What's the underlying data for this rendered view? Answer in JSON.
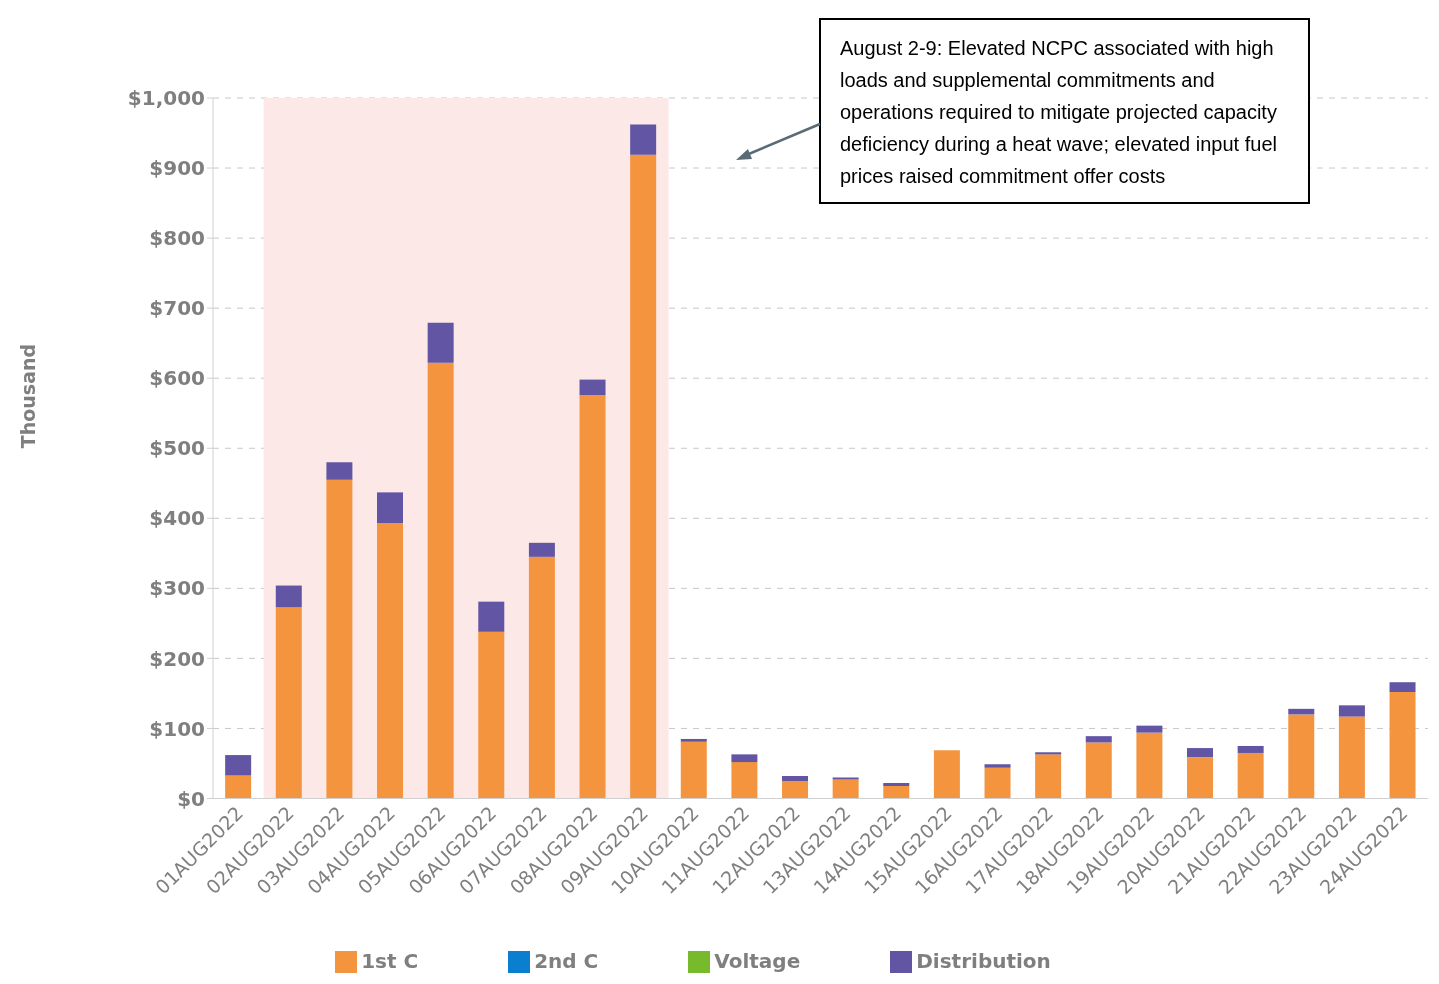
{
  "chart_data": {
    "type": "bar",
    "stacked": true,
    "ylabel": "Thousand",
    "categories": [
      "01AUG2022",
      "02AUG2022",
      "03AUG2022",
      "04AUG2022",
      "05AUG2022",
      "06AUG2022",
      "07AUG2022",
      "08AUG2022",
      "09AUG2022",
      "10AUG2022",
      "11AUG2022",
      "12AUG2022",
      "13AUG2022",
      "14AUG2022",
      "15AUG2022",
      "16AUG2022",
      "17AUG2022",
      "18AUG2022",
      "19AUG2022",
      "20AUG2022",
      "21AUG2022",
      "22AUG2022",
      "23AUG2022",
      "24AUG2022"
    ],
    "series": [
      {
        "name": "1st C",
        "color": "#f5943f",
        "values": [
          33,
          273,
          455,
          393,
          622,
          238,
          345,
          576,
          919,
          81,
          52,
          25,
          27,
          18,
          69,
          44,
          63,
          80,
          94,
          59,
          65,
          120,
          117,
          152
        ]
      },
      {
        "name": "2nd C",
        "color": "#0a7fd0",
        "values": [
          0,
          0,
          0,
          0,
          0,
          0,
          0,
          0,
          0,
          0,
          0,
          0,
          0,
          0,
          0,
          0,
          0,
          0,
          0,
          0,
          0,
          0,
          0,
          0
        ]
      },
      {
        "name": "Voltage",
        "color": "#77bb2d",
        "values": [
          0,
          0,
          0,
          0,
          0,
          0,
          0,
          0,
          0,
          0,
          0,
          0,
          0,
          0,
          0,
          0,
          0,
          0,
          0,
          0,
          0,
          0,
          0,
          0
        ]
      },
      {
        "name": "Distribution",
        "color": "#6155a4",
        "values": [
          29,
          31,
          25,
          44,
          57,
          43,
          20,
          22,
          43,
          4,
          11,
          7,
          3,
          4,
          0,
          5,
          3,
          9,
          10,
          13,
          10,
          8,
          16,
          14
        ]
      }
    ],
    "ylim": [
      0,
      1000
    ],
    "yticks": [
      {
        "value": 0,
        "label": "$0"
      },
      {
        "value": 100,
        "label": "$100"
      },
      {
        "value": 200,
        "label": "$200"
      },
      {
        "value": 300,
        "label": "$300"
      },
      {
        "value": 400,
        "label": "$400"
      },
      {
        "value": 500,
        "label": "$500"
      },
      {
        "value": 600,
        "label": "$600"
      },
      {
        "value": 700,
        "label": "$700"
      },
      {
        "value": 800,
        "label": "$800"
      },
      {
        "value": 900,
        "label": "$900"
      },
      {
        "value": 1000,
        "label": "$1,000"
      }
    ],
    "grid": "y",
    "legend": "bottom",
    "bands": [
      {
        "axis": "x",
        "from": "02AUG2022",
        "to": "09AUG2022",
        "color": "#fde8e8"
      }
    ],
    "annotations": [
      "August 2-9: Elevated NCPC associated with high loads and supplemental commitments and operations required to mitigate projected capacity deficiency during a heat wave; elevated input fuel prices raised commitment offer costs"
    ]
  }
}
